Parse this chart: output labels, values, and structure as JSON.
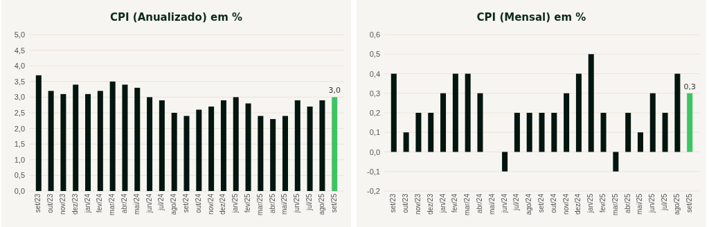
{
  "chart_data": [
    {
      "type": "bar",
      "title": "CPI (Anualizado) em %",
      "categories": [
        "set/23",
        "out/23",
        "nov/23",
        "dez/23",
        "jan/24",
        "fev/24",
        "mar/24",
        "abr/24",
        "mai/24",
        "jun/24",
        "jul/24",
        "ago/24",
        "set/24",
        "out/24",
        "nov/24",
        "dez/24",
        "jan/25",
        "fev/25",
        "mar/25",
        "abr/25",
        "mai/25",
        "jun/25",
        "jul/25",
        "ago/25",
        "set/25"
      ],
      "values": [
        3.7,
        3.2,
        3.1,
        3.4,
        3.1,
        3.2,
        3.5,
        3.4,
        3.3,
        3.0,
        2.9,
        2.5,
        2.4,
        2.6,
        2.7,
        2.9,
        3.0,
        2.8,
        2.4,
        2.3,
        2.4,
        2.9,
        2.7,
        2.9,
        3.0
      ],
      "colors": [
        "#03150f",
        "#03150f",
        "#03150f",
        "#03150f",
        "#03150f",
        "#03150f",
        "#03150f",
        "#03150f",
        "#03150f",
        "#03150f",
        "#03150f",
        "#03150f",
        "#03150f",
        "#03150f",
        "#03150f",
        "#03150f",
        "#03150f",
        "#03150f",
        "#03150f",
        "#03150f",
        "#03150f",
        "#03150f",
        "#03150f",
        "#03150f",
        "#3cc463"
      ],
      "value_labels": [
        null,
        null,
        null,
        null,
        null,
        null,
        null,
        null,
        null,
        null,
        null,
        null,
        null,
        null,
        null,
        null,
        null,
        null,
        null,
        null,
        null,
        null,
        null,
        null,
        "3,0"
      ],
      "ylim": [
        0,
        5
      ],
      "yticks": [
        {
          "value": 0,
          "label": "0,0"
        },
        {
          "value": 0.5,
          "label": "0,5"
        },
        {
          "value": 1,
          "label": "1,0"
        },
        {
          "value": 1.5,
          "label": "1,5"
        },
        {
          "value": 2,
          "label": "2,0"
        },
        {
          "value": 2.5,
          "label": "2,5"
        },
        {
          "value": 3,
          "label": "3,0"
        },
        {
          "value": 3.5,
          "label": "3,5"
        },
        {
          "value": 4,
          "label": "4,0"
        },
        {
          "value": 4.5,
          "label": "4,5"
        },
        {
          "value": 5,
          "label": "5,0"
        }
      ],
      "grid": "y"
    },
    {
      "type": "bar",
      "title": "CPI (Mensal) em %",
      "categories": [
        "set/23",
        "out/23",
        "nov/23",
        "dez/23",
        "jan/24",
        "fev/24",
        "mar/24",
        "abr/24",
        "mai/24",
        "jun/24",
        "jul/24",
        "ago/24",
        "set/24",
        "out/24",
        "nov/24",
        "dez/24",
        "jan/25",
        "fev/25",
        "mar/25",
        "abr/25",
        "mai/25",
        "jun/25",
        "jul/25",
        "ago/25",
        "set/25"
      ],
      "values": [
        0.4,
        0.1,
        0.2,
        0.2,
        0.3,
        0.4,
        0.4,
        0.3,
        0.0,
        -0.1,
        0.2,
        0.2,
        0.2,
        0.2,
        0.3,
        0.4,
        0.5,
        0.2,
        -0.1,
        0.2,
        0.1,
        0.3,
        0.2,
        0.4,
        0.3
      ],
      "colors": [
        "#03150f",
        "#03150f",
        "#03150f",
        "#03150f",
        "#03150f",
        "#03150f",
        "#03150f",
        "#03150f",
        "#03150f",
        "#03150f",
        "#03150f",
        "#03150f",
        "#03150f",
        "#03150f",
        "#03150f",
        "#03150f",
        "#03150f",
        "#03150f",
        "#03150f",
        "#03150f",
        "#03150f",
        "#03150f",
        "#03150f",
        "#03150f",
        "#3cc463"
      ],
      "value_labels": [
        null,
        null,
        null,
        null,
        null,
        null,
        null,
        null,
        null,
        null,
        null,
        null,
        null,
        null,
        null,
        null,
        null,
        null,
        null,
        null,
        null,
        null,
        null,
        null,
        "0,3"
      ],
      "ylim": [
        -0.2,
        0.6
      ],
      "yticks": [
        {
          "value": -0.2,
          "label": "-0,2"
        },
        {
          "value": -0.1,
          "label": "-0,1"
        },
        {
          "value": 0,
          "label": "0,0"
        },
        {
          "value": 0.1,
          "label": "0,1"
        },
        {
          "value": 0.2,
          "label": "0,2"
        },
        {
          "value": 0.3,
          "label": "0,3"
        },
        {
          "value": 0.4,
          "label": "0,4"
        },
        {
          "value": 0.5,
          "label": "0,5"
        },
        {
          "value": 0.6,
          "label": "0,6"
        }
      ],
      "grid": "y"
    }
  ]
}
